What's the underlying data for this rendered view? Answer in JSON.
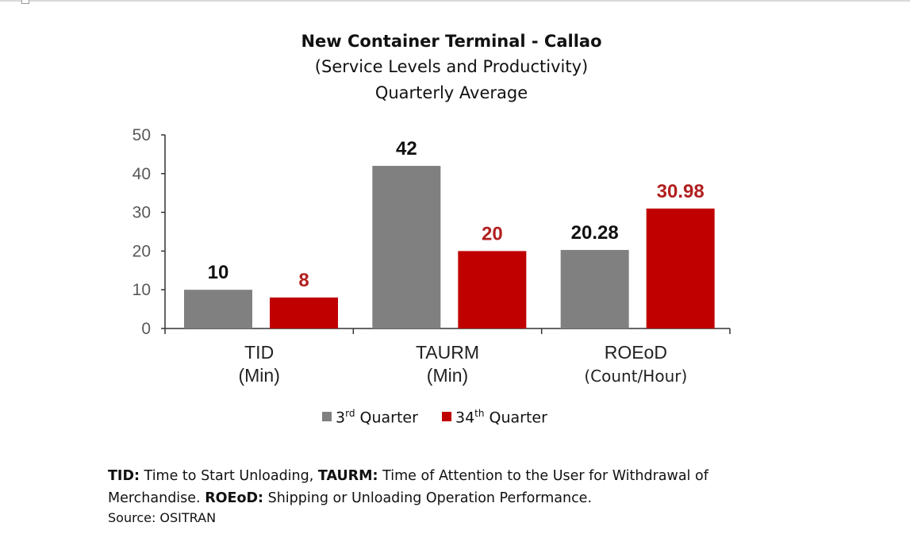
{
  "chart_data": {
    "type": "bar",
    "title": "New Container Terminal - Callao",
    "subtitle_lines": [
      "(Service Levels and Productivity)",
      "Quarterly Average"
    ],
    "categories": [
      {
        "name": "TID",
        "unit": "(Min)"
      },
      {
        "name": "TAURM",
        "unit": "(Min)"
      },
      {
        "name": "ROEoD",
        "unit": "(Count/Hour)"
      }
    ],
    "series": [
      {
        "name": "3rd Quarter",
        "name_base": "3",
        "name_sup": "rd",
        "name_rest": " Quarter",
        "color": "#808080",
        "label_color": "#111111",
        "values": [
          10,
          42,
          20.28
        ],
        "labels": [
          "10",
          "42",
          "20.28"
        ]
      },
      {
        "name": "34th Quarter",
        "name_base": "34",
        "name_sup": "th",
        "name_rest": " Quarter",
        "color": "#c00000",
        "label_color": "#b21f1f",
        "values": [
          8,
          20,
          30.98
        ],
        "labels": [
          "8",
          "20",
          "30.98"
        ]
      }
    ],
    "ylim": [
      0,
      50
    ],
    "yticks": [
      0,
      10,
      20,
      30,
      40,
      50
    ],
    "grid": false,
    "legend_position": "bottom"
  },
  "notes": {
    "line1": [
      {
        "text": "TID:",
        "bold": true
      },
      {
        "text": " Time to Start Unloading, ",
        "bold": false
      },
      {
        "text": "TAURM:",
        "bold": true
      },
      {
        "text": " Time of Attention to the User for Withdrawal of",
        "bold": false
      }
    ],
    "line2": [
      {
        "text": "Merchandise. ",
        "bold": false
      },
      {
        "text": "ROEoD:",
        "bold": true
      },
      {
        "text": " Shipping or Unloading Operation Performance.",
        "bold": false
      }
    ],
    "source": "Source: OSITRAN"
  }
}
